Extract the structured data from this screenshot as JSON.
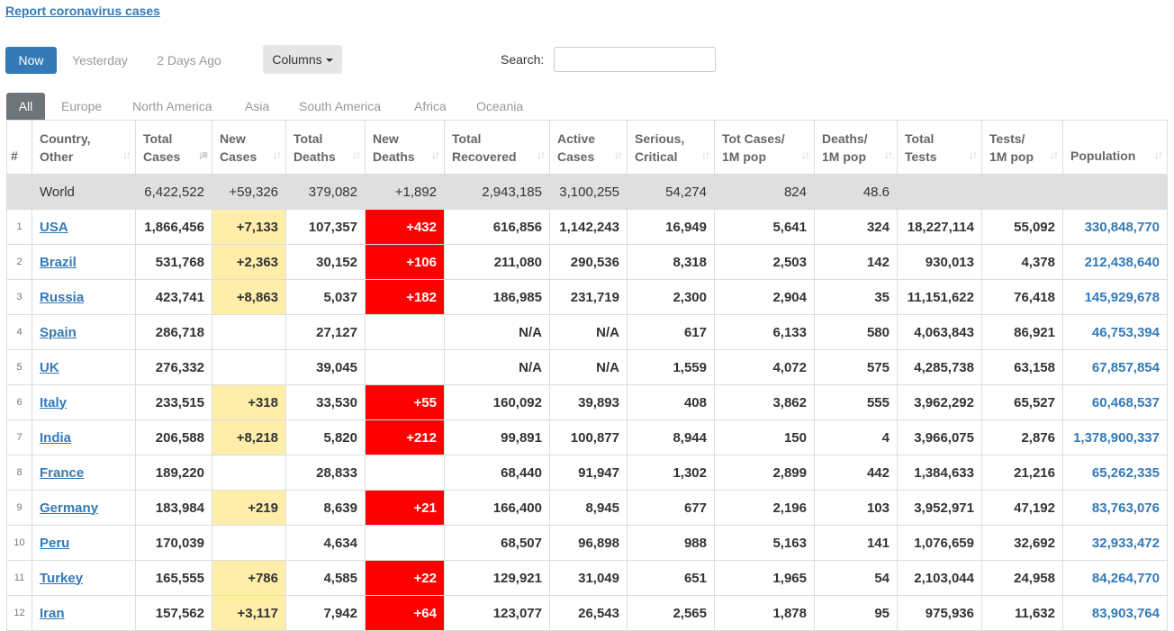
{
  "header": {
    "report_link": "Report coronavirus cases"
  },
  "day_tabs": [
    "Now",
    "Yesterday",
    "2 Days Ago"
  ],
  "columns_button": "Columns",
  "search": {
    "label": "Search:",
    "value": "",
    "placeholder": ""
  },
  "region_tabs": [
    "All",
    "Europe",
    "North America",
    "Asia",
    "South America",
    "Africa",
    "Oceania"
  ],
  "table": {
    "headers": {
      "rank": "#",
      "country": [
        "Country,",
        "Other"
      ],
      "total_cases": [
        "Total",
        "Cases"
      ],
      "new_cases": [
        "New",
        "Cases"
      ],
      "total_deaths": [
        "Total",
        "Deaths"
      ],
      "new_deaths": [
        "New",
        "Deaths"
      ],
      "total_recovered": [
        "Total",
        "Recovered"
      ],
      "active_cases": [
        "Active",
        "Cases"
      ],
      "serious_critical": [
        "Serious,",
        "Critical"
      ],
      "cases_per_1m": [
        "Tot Cases/",
        "1M pop"
      ],
      "deaths_per_1m": [
        "Deaths/",
        "1M pop"
      ],
      "total_tests": [
        "Total",
        "Tests"
      ],
      "tests_per_1m": [
        "Tests/",
        "1M pop"
      ],
      "population": "Population"
    },
    "world": {
      "country": "World",
      "total_cases": "6,422,522",
      "new_cases": "+59,326",
      "total_deaths": "379,082",
      "new_deaths": "+1,892",
      "total_recovered": "2,943,185",
      "active_cases": "3,100,255",
      "serious_critical": "54,274",
      "cases_per_1m": "824",
      "deaths_per_1m": "48.6",
      "total_tests": "",
      "tests_per_1m": "",
      "population": ""
    },
    "rows": [
      {
        "rank": "1",
        "country": "USA",
        "total_cases": "1,866,456",
        "new_cases": "+7,133",
        "total_deaths": "107,357",
        "new_deaths": "+432",
        "total_recovered": "616,856",
        "active_cases": "1,142,243",
        "serious_critical": "16,949",
        "cases_per_1m": "5,641",
        "deaths_per_1m": "324",
        "total_tests": "18,227,114",
        "tests_per_1m": "55,092",
        "population": "330,848,770"
      },
      {
        "rank": "2",
        "country": "Brazil",
        "total_cases": "531,768",
        "new_cases": "+2,363",
        "total_deaths": "30,152",
        "new_deaths": "+106",
        "total_recovered": "211,080",
        "active_cases": "290,536",
        "serious_critical": "8,318",
        "cases_per_1m": "2,503",
        "deaths_per_1m": "142",
        "total_tests": "930,013",
        "tests_per_1m": "4,378",
        "population": "212,438,640"
      },
      {
        "rank": "3",
        "country": "Russia",
        "total_cases": "423,741",
        "new_cases": "+8,863",
        "total_deaths": "5,037",
        "new_deaths": "+182",
        "total_recovered": "186,985",
        "active_cases": "231,719",
        "serious_critical": "2,300",
        "cases_per_1m": "2,904",
        "deaths_per_1m": "35",
        "total_tests": "11,151,622",
        "tests_per_1m": "76,418",
        "population": "145,929,678"
      },
      {
        "rank": "4",
        "country": "Spain",
        "total_cases": "286,718",
        "new_cases": "",
        "total_deaths": "27,127",
        "new_deaths": "",
        "total_recovered": "N/A",
        "active_cases": "N/A",
        "serious_critical": "617",
        "cases_per_1m": "6,133",
        "deaths_per_1m": "580",
        "total_tests": "4,063,843",
        "tests_per_1m": "86,921",
        "population": "46,753,394"
      },
      {
        "rank": "5",
        "country": "UK",
        "total_cases": "276,332",
        "new_cases": "",
        "total_deaths": "39,045",
        "new_deaths": "",
        "total_recovered": "N/A",
        "active_cases": "N/A",
        "serious_critical": "1,559",
        "cases_per_1m": "4,072",
        "deaths_per_1m": "575",
        "total_tests": "4,285,738",
        "tests_per_1m": "63,158",
        "population": "67,857,854"
      },
      {
        "rank": "6",
        "country": "Italy",
        "total_cases": "233,515",
        "new_cases": "+318",
        "total_deaths": "33,530",
        "new_deaths": "+55",
        "total_recovered": "160,092",
        "active_cases": "39,893",
        "serious_critical": "408",
        "cases_per_1m": "3,862",
        "deaths_per_1m": "555",
        "total_tests": "3,962,292",
        "tests_per_1m": "65,527",
        "population": "60,468,537"
      },
      {
        "rank": "7",
        "country": "India",
        "total_cases": "206,588",
        "new_cases": "+8,218",
        "total_deaths": "5,820",
        "new_deaths": "+212",
        "total_recovered": "99,891",
        "active_cases": "100,877",
        "serious_critical": "8,944",
        "cases_per_1m": "150",
        "deaths_per_1m": "4",
        "total_tests": "3,966,075",
        "tests_per_1m": "2,876",
        "population": "1,378,900,337"
      },
      {
        "rank": "8",
        "country": "France",
        "total_cases": "189,220",
        "new_cases": "",
        "total_deaths": "28,833",
        "new_deaths": "",
        "total_recovered": "68,440",
        "active_cases": "91,947",
        "serious_critical": "1,302",
        "cases_per_1m": "2,899",
        "deaths_per_1m": "442",
        "total_tests": "1,384,633",
        "tests_per_1m": "21,216",
        "population": "65,262,335"
      },
      {
        "rank": "9",
        "country": "Germany",
        "total_cases": "183,984",
        "new_cases": "+219",
        "total_deaths": "8,639",
        "new_deaths": "+21",
        "total_recovered": "166,400",
        "active_cases": "8,945",
        "serious_critical": "677",
        "cases_per_1m": "2,196",
        "deaths_per_1m": "103",
        "total_tests": "3,952,971",
        "tests_per_1m": "47,192",
        "population": "83,763,076"
      },
      {
        "rank": "10",
        "country": "Peru",
        "total_cases": "170,039",
        "new_cases": "",
        "total_deaths": "4,634",
        "new_deaths": "",
        "total_recovered": "68,507",
        "active_cases": "96,898",
        "serious_critical": "988",
        "cases_per_1m": "5,163",
        "deaths_per_1m": "141",
        "total_tests": "1,076,659",
        "tests_per_1m": "32,692",
        "population": "32,933,472"
      },
      {
        "rank": "11",
        "country": "Turkey",
        "total_cases": "165,555",
        "new_cases": "+786",
        "total_deaths": "4,585",
        "new_deaths": "+22",
        "total_recovered": "129,921",
        "active_cases": "31,049",
        "serious_critical": "651",
        "cases_per_1m": "1,965",
        "deaths_per_1m": "54",
        "total_tests": "2,103,044",
        "tests_per_1m": "24,958",
        "population": "84,264,770"
      },
      {
        "rank": "12",
        "country": "Iran",
        "total_cases": "157,562",
        "new_cases": "+3,117",
        "total_deaths": "7,942",
        "new_deaths": "+64",
        "total_recovered": "123,077",
        "active_cases": "26,543",
        "serious_critical": "2,565",
        "cases_per_1m": "1,878",
        "deaths_per_1m": "95",
        "total_tests": "975,936",
        "tests_per_1m": "11,632",
        "population": "83,903,764"
      }
    ]
  },
  "colors": {
    "accent": "#337ab7",
    "new_cases_bg": "#ffeeaa",
    "new_deaths_bg": "#ff0000",
    "world_row_bg": "#dfdfdf",
    "active_region_tab": "#6d7579"
  }
}
